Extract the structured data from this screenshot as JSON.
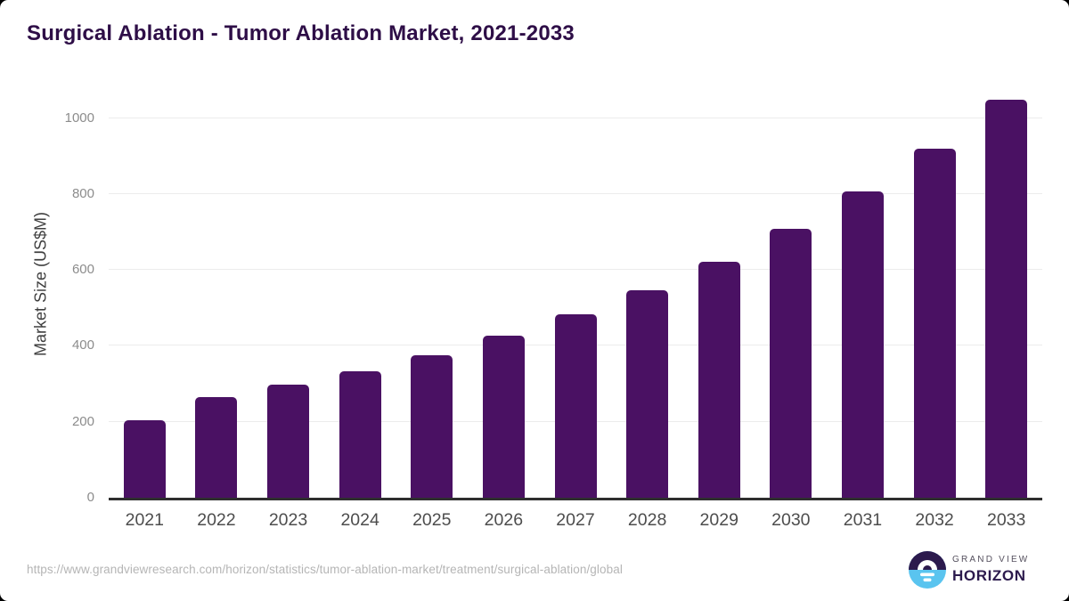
{
  "title": "Surgical Ablation - Tumor Ablation Market, 2021-2033",
  "footer": {
    "source_url": "https://www.grandviewresearch.com/horizon/statistics/tumor-ablation-market/treatment/surgical-ablation/global"
  },
  "logo": {
    "line1": "GRAND VIEW",
    "line2": "HORIZON",
    "icon": "sun-over-horizon-circle",
    "purple": "#2c1a4d",
    "blue": "#5ac4ef"
  },
  "colors": {
    "bar": "#4a1163",
    "title": "#2e0e47",
    "axis_line": "#2f2f2f",
    "gridline": "#ececec",
    "ytick_text": "#8c8c8c",
    "xtick_text": "#4d4d4d",
    "background": "#ffffff"
  },
  "chart_data": {
    "type": "bar",
    "title": "Surgical Ablation - Tumor Ablation Market, 2021-2033",
    "xlabel": "",
    "ylabel": "Market Size (US$M)",
    "categories": [
      "2021",
      "2022",
      "2023",
      "2024",
      "2025",
      "2026",
      "2027",
      "2028",
      "2029",
      "2030",
      "2031",
      "2032",
      "2033"
    ],
    "values": [
      203,
      264,
      297,
      334,
      376,
      426,
      482,
      546,
      622,
      709,
      807,
      919,
      1049
    ],
    "yticks": [
      0,
      200,
      400,
      600,
      800,
      1000
    ],
    "ylim": [
      0,
      1052
    ],
    "grid": "horizontal-only",
    "legend": "none",
    "bar_color": "#4a1163"
  }
}
